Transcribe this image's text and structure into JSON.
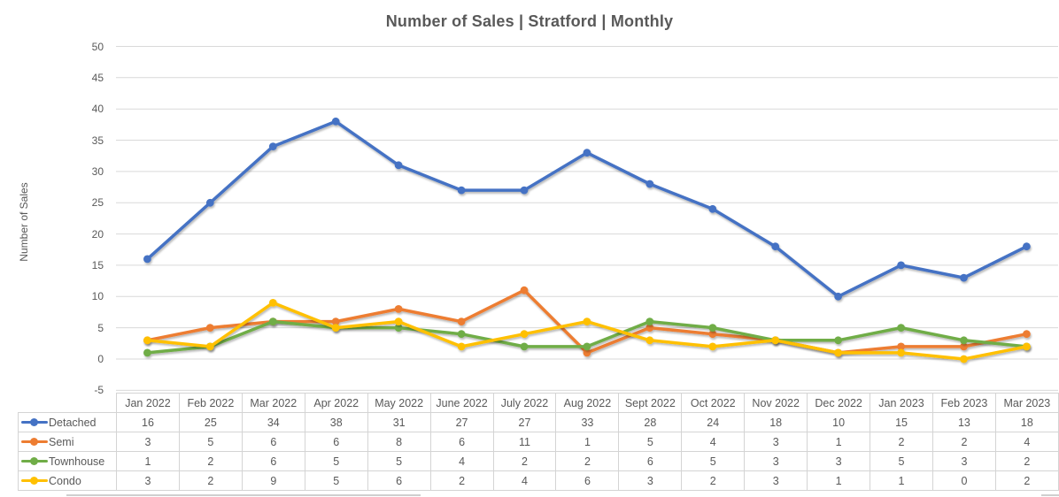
{
  "chart_data": {
    "type": "line",
    "title": "Number of Sales | Stratford | Monthly",
    "xlabel": "",
    "ylabel": "Number of Sales",
    "categories": [
      "Jan 2022",
      "Feb 2022",
      "Mar 2022",
      "Apr 2022",
      "May 2022",
      "June 2022",
      "July 2022",
      "Aug 2022",
      "Sept 2022",
      "Oct 2022",
      "Nov 2022",
      "Dec 2022",
      "Jan 2023",
      "Feb 2023",
      "Mar 2023"
    ],
    "series": [
      {
        "name": "Detached",
        "color": "#4472C4",
        "values": [
          16,
          25,
          34,
          38,
          31,
          27,
          27,
          33,
          28,
          24,
          18,
          10,
          15,
          13,
          18
        ]
      },
      {
        "name": "Semi",
        "color": "#ED7D31",
        "values": [
          3,
          5,
          6,
          6,
          8,
          6,
          11,
          1,
          5,
          4,
          3,
          1,
          2,
          2,
          4
        ]
      },
      {
        "name": "Townhouse",
        "color": "#70AD47",
        "values": [
          1,
          2,
          6,
          5,
          5,
          4,
          2,
          2,
          6,
          5,
          3,
          3,
          5,
          3,
          2
        ]
      },
      {
        "name": "Condo",
        "color": "#FFC000",
        "values": [
          3,
          2,
          9,
          5,
          6,
          2,
          4,
          6,
          3,
          2,
          3,
          1,
          1,
          0,
          2
        ]
      }
    ],
    "ylim": [
      -5,
      50
    ],
    "y_ticks": [
      50,
      45,
      40,
      35,
      30,
      25,
      20,
      15,
      10,
      5,
      0,
      -5
    ],
    "grid": "horizontal",
    "gridline_color": "#d9d9d9",
    "legend_position": "table-left",
    "title_color": "#595959",
    "axis_text_color": "#595959"
  }
}
